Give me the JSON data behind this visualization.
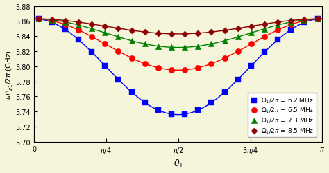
{
  "xlabel": "$\\theta_1$",
  "ylabel": "$\\omega''_{z1}/2\\pi$ (GHz)",
  "xlim": [
    0,
    3.14159265
  ],
  "ylim": [
    5.7,
    5.88
  ],
  "yticks": [
    5.7,
    5.72,
    5.74,
    5.76,
    5.78,
    5.8,
    5.82,
    5.84,
    5.86,
    5.88
  ],
  "xtick_vals": [
    0,
    0.7854,
    1.5708,
    2.3562,
    3.14159
  ],
  "xtick_labels": [
    "0",
    "$\\pi/4$",
    "$\\pi/2$",
    "$3\\pi/4$",
    "$\\pi$"
  ],
  "background_color": "#f5f5dc",
  "series": [
    {
      "label": "$\\Omega_1/2\\pi$ = 6.2 MHz",
      "base": 5.863,
      "depth": 0.127,
      "color": "blue",
      "marker": "s",
      "ms": 4.5
    },
    {
      "label": "$\\Omega_1/2\\pi$ = 6.5 MHz",
      "base": 5.863,
      "depth": 0.068,
      "color": "red",
      "marker": "o",
      "ms": 4.5
    },
    {
      "label": "$\\Omega_1/2\\pi$ = 7.3 MHz",
      "base": 5.863,
      "depth": 0.038,
      "color": "green",
      "marker": "^",
      "ms": 4.5
    },
    {
      "label": "$\\Omega_1/2\\pi$ = 8.5 MHz",
      "base": 5.863,
      "depth": 0.02,
      "color": "#8b0000",
      "marker": "D",
      "ms": 3.5
    }
  ],
  "n_scatter": 22,
  "scatter_range_start": 0.05,
  "scatter_range_end": 3.09
}
